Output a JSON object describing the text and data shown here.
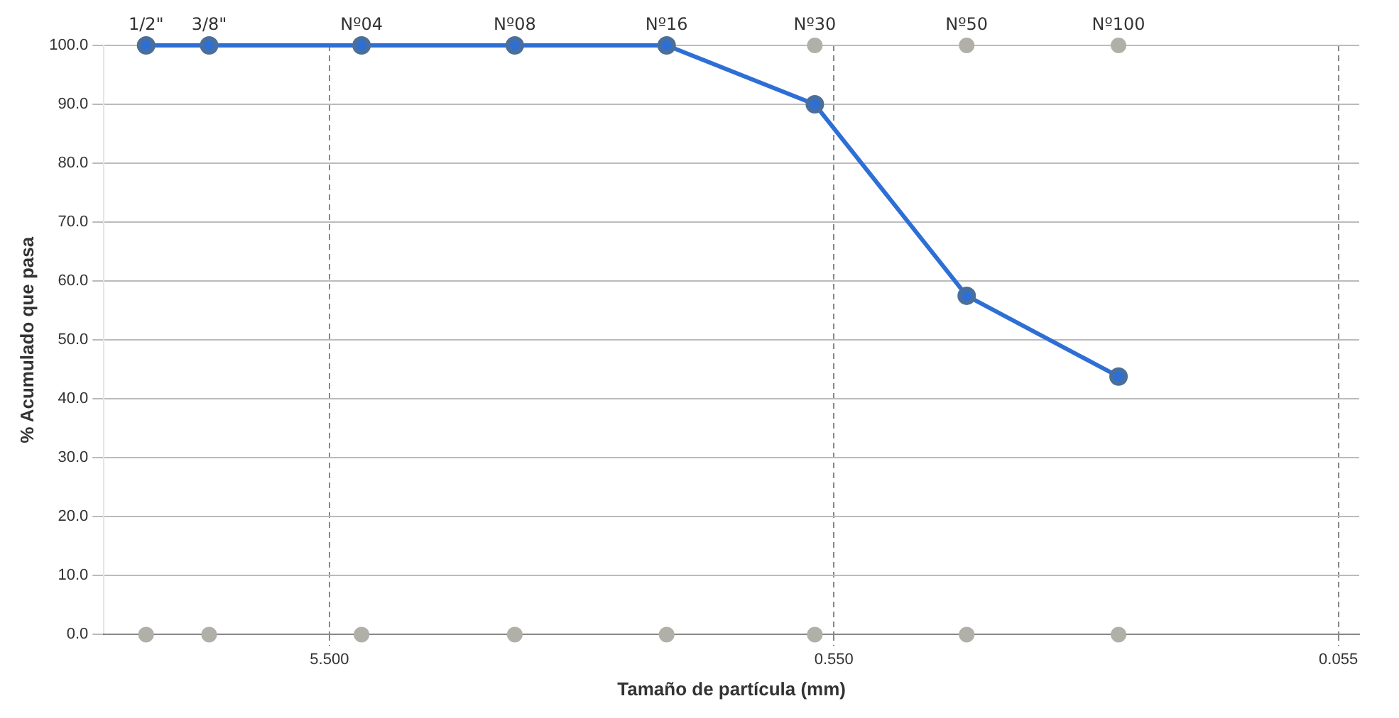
{
  "chart_data": {
    "type": "line",
    "xlabel": "Tamaño de partícula (mm)",
    "ylabel": "% Acumulado que pasa",
    "x": [
      12.7,
      9.525,
      4.75,
      2.36,
      1.18,
      0.6,
      0.3,
      0.15
    ],
    "series": [
      {
        "type": "scatter",
        "color": "#b0b0a8",
        "values": [
          null,
          null,
          null,
          null,
          null,
          100,
          100,
          100
        ]
      },
      {
        "type": "scatter",
        "color": "#b0b0a8",
        "values": [
          0,
          0,
          0,
          0,
          0,
          0,
          0,
          0
        ]
      },
      {
        "color": "#2e6fd6",
        "values": [
          100.0,
          100.0,
          100.0,
          100.0,
          100.0,
          90.0,
          57.5,
          43.8
        ]
      }
    ],
    "log": "x",
    "xlim": [
      15.4,
      0.05
    ],
    "xticks": [
      {
        "value": 5.5,
        "label": "5.500"
      },
      {
        "value": 0.55,
        "label": "0.550"
      },
      {
        "value": 0.055,
        "label": "0.055"
      }
    ],
    "ylim": [
      0,
      100
    ],
    "yticks": [
      {
        "value": 0,
        "label": "0.0"
      },
      {
        "value": 10,
        "label": "10.0"
      },
      {
        "value": 20,
        "label": "20.0"
      },
      {
        "value": 30,
        "label": "30.0"
      },
      {
        "value": 40,
        "label": "40.0"
      },
      {
        "value": 50,
        "label": "50.0"
      },
      {
        "value": 60,
        "label": "60.0"
      },
      {
        "value": 70,
        "label": "70.0"
      },
      {
        "value": 80,
        "label": "80.0"
      },
      {
        "value": 90,
        "label": "90.0"
      },
      {
        "value": 100,
        "label": "100.0"
      }
    ],
    "grid": true,
    "legend": false,
    "marker": "circle",
    "line_style": "solid",
    "annotations": [
      {
        "text": "1/2\"",
        "x": 12.7,
        "y": 100
      },
      {
        "text": "3/8\"",
        "x": 9.525,
        "y": 100
      },
      {
        "text": "Nº04",
        "x": 4.75,
        "y": 100
      },
      {
        "text": "Nº08",
        "x": 2.36,
        "y": 100
      },
      {
        "text": "Nº16",
        "x": 1.18,
        "y": 100
      },
      {
        "text": "Nº30",
        "x": 0.6,
        "y": 100
      },
      {
        "text": "Nº50",
        "x": 0.3,
        "y": 100
      },
      {
        "text": "Nº100",
        "x": 0.15,
        "y": 100
      }
    ]
  }
}
